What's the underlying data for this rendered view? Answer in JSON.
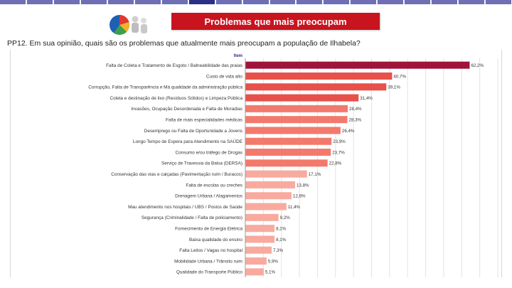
{
  "header": {
    "nav_tabs": [
      "",
      "",
      "",
      "",
      "",
      "",
      "",
      "",
      "",
      "",
      "",
      "",
      "",
      "",
      "",
      "",
      "",
      "",
      ""
    ],
    "active_tab_index": 7,
    "title": "Problemas que mais preocupam",
    "logo_icon": "pie-chart-people-icon"
  },
  "question": {
    "code": "PP12.",
    "text": "Em sua opinião, quais são os problemas que atualmente mais preocupam a população de Ilhabela?",
    "marker_glyph": ""
  },
  "chart_data": {
    "type": "bar",
    "orientation": "horizontal",
    "header_label": "Item",
    "categories": [
      "Falta de Coleta e Tratamento de Esgoto / Balneabilidade das praias",
      "Custo de vida alto",
      "Corrupção, Falta de Transparência e Má qualidade da administração pública",
      "Coleta e destinação de lixo (Resíduos Sólidos) e Limpeza Pública",
      "Invasões, Ocupação Desordenada e Falta de Moradias",
      "Falta de mais especialidades médicas",
      "Desemprego ou Falta de Oportunidade a Jovens",
      "Longo Tempo de Espera para Atendimento na SAÚDE",
      "Consumo e/ou tráfego de Drogas",
      "Serviço de Travessia da Balsa (DERSA)",
      "Conservação das vias e calçadas (Pavimentação ruim / Buracos)",
      "Falta de escolas ou creches",
      "Drenagem Urbana / Alagamentos",
      "Mau atendimento nos hospitais / UBS / Postos de Saúde",
      "Segurança (Criminalidade / Falta de policiamento)",
      "Fornecimento de Energia Elétrica",
      "Baixa qualidade do ensino",
      "Falta Leitos / Vagas no hospital",
      "Mobilidade Urbana / Trânsito ruim",
      "Qualidade do Transporte Público"
    ],
    "values": [
      62.2,
      40.7,
      39.1,
      31.4,
      28.4,
      28.3,
      26.4,
      23.9,
      23.7,
      22.8,
      17.1,
      13.8,
      12.8,
      11.4,
      9.2,
      8.1,
      8.1,
      7.3,
      5.9,
      5.1
    ],
    "value_labels": [
      "62,2%",
      "40,7%",
      "39,1%",
      "31,4%",
      "28,4%",
      "28,3%",
      "26,4%",
      "23,9%",
      "23,7%",
      "22,8%",
      "17,1%",
      "13,8%",
      "12,8%",
      "11,4%",
      "9,2%",
      "8,1%",
      "8,1%",
      "7,3%",
      "5,9%",
      "5,1%"
    ],
    "xlim": [
      0,
      70
    ],
    "grid": true,
    "colors": {
      "top": "#a0143c",
      "high": "#e8504a",
      "mid": "#f27a6c",
      "low": "#f8aa9f",
      "grid": "#e3e3e3"
    }
  }
}
